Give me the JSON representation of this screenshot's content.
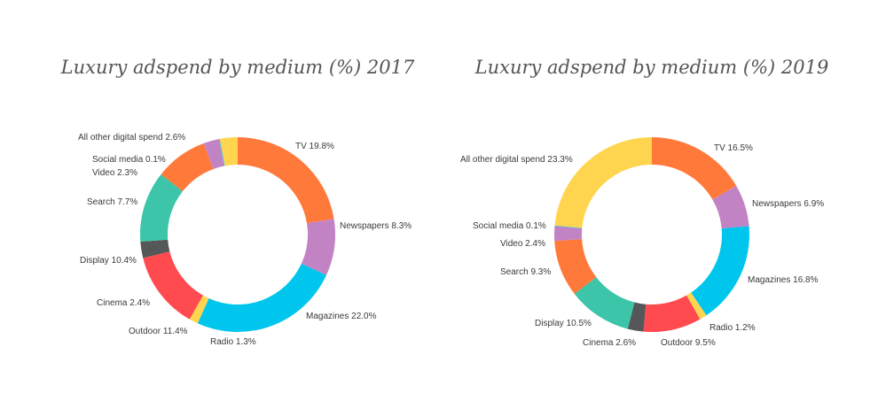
{
  "chart_data": [
    {
      "type": "pie",
      "title": "Luxury adspend by medium (%) 2017",
      "slices": [
        {
          "name": "TV",
          "value": 19.8,
          "label": "TV 19.8%",
          "color": "#FF7A3A"
        },
        {
          "name": "Newspapers",
          "value": 8.3,
          "label": "Newspapers 8.3%",
          "color": "#C283C4"
        },
        {
          "name": "Magazines",
          "value": 22.0,
          "label": "Magazines 22.0%",
          "color": "#00C6EE"
        },
        {
          "name": "Radio",
          "value": 1.3,
          "label": "Radio 1.3%",
          "color": "#FFD54F"
        },
        {
          "name": "Outdoor",
          "value": 11.4,
          "label": "Outdoor 11.4%",
          "color": "#FF4A4F"
        },
        {
          "name": "Cinema",
          "value": 2.4,
          "label": "Cinema 2.4%",
          "color": "#555758"
        },
        {
          "name": "Display",
          "value": 10.4,
          "label": "Display 10.4%",
          "color": "#3CC5A8"
        },
        {
          "name": "Search",
          "value": 7.7,
          "label": "Search 7.7%",
          "color": "#FF7A3A"
        },
        {
          "name": "Video",
          "value": 2.3,
          "label": "Video 2.3%",
          "color": "#C283C4"
        },
        {
          "name": "Social media",
          "value": 0.1,
          "label": "Social media 0.1%",
          "color": "#00C6EE"
        },
        {
          "name": "All other digital spend",
          "value": 2.6,
          "label": "All other digital spend 2.6%",
          "color": "#FFD54F"
        }
      ]
    },
    {
      "type": "pie",
      "title": "Luxury adspend by medium (%) 2019",
      "slices": [
        {
          "name": "TV",
          "value": 16.5,
          "label": "TV 16.5%",
          "color": "#FF7A3A"
        },
        {
          "name": "Newspapers",
          "value": 6.9,
          "label": "Newspapers 6.9%",
          "color": "#C283C4"
        },
        {
          "name": "Magazines",
          "value": 16.8,
          "label": "Magazines 16.8%",
          "color": "#00C6EE"
        },
        {
          "name": "Radio",
          "value": 1.2,
          "label": "Radio 1.2%",
          "color": "#FFD54F"
        },
        {
          "name": "Outdoor",
          "value": 9.5,
          "label": "Outdoor 9.5%",
          "color": "#FF4A4F"
        },
        {
          "name": "Cinema",
          "value": 2.6,
          "label": "Cinema 2.6%",
          "color": "#555758"
        },
        {
          "name": "Display",
          "value": 10.5,
          "label": "Display 10.5%",
          "color": "#3CC5A8"
        },
        {
          "name": "Search",
          "value": 9.3,
          "label": "Search 9.3%",
          "color": "#FF7A3A"
        },
        {
          "name": "Video",
          "value": 2.4,
          "label": "Video 2.4%",
          "color": "#C283C4"
        },
        {
          "name": "Social media",
          "value": 0.1,
          "label": "Social media 0.1%",
          "color": "#00C6EE"
        },
        {
          "name": "All other digital spend",
          "value": 23.3,
          "label": "All other digital spend 23.3%",
          "color": "#FFD54F"
        }
      ]
    }
  ]
}
